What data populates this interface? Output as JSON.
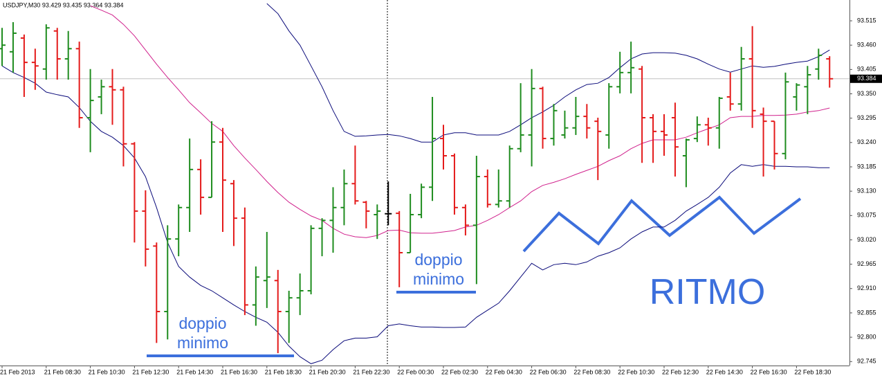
{
  "chart_data": {
    "type": "ohlc",
    "title": "USDJPY,M30  93.429 93.435 93.364 93.384",
    "categories": [
      "21 Feb 2013",
      null,
      null,
      null,
      "21 Feb 08:30",
      null,
      null,
      null,
      "21 Feb 10:30",
      null,
      null,
      null,
      "21 Feb 12:30",
      null,
      null,
      null,
      "21 Feb 14:30",
      null,
      null,
      null,
      "21 Feb 16:30",
      null,
      null,
      null,
      "21 Feb 18:30",
      null,
      null,
      null,
      "21 Feb 20:30",
      null,
      null,
      null,
      "21 Feb 22:30",
      null,
      null,
      null,
      "22 Feb 00:30",
      null,
      null,
      null,
      "22 Feb 02:30",
      null,
      null,
      null,
      "22 Feb 04:30",
      null,
      null,
      null,
      "22 Feb 06:30",
      null,
      null,
      null,
      "22 Feb 08:30",
      null,
      null,
      null,
      "22 Feb 10:30",
      null,
      null,
      null,
      "22 Feb 12:30",
      null,
      null,
      null,
      "22 Feb 14:30",
      null,
      null,
      null,
      "22 Feb 16:30",
      null,
      null,
      null,
      "22 Feb 18:30",
      null,
      null,
      null
    ],
    "open": [
      93.452,
      93.445,
      93.476,
      93.421,
      93.406,
      93.492,
      93.429,
      93.452,
      93.296,
      93.343,
      93.366,
      93.359,
      93.237,
      93.085,
      93.006,
      92.858,
      93.022,
      93.093,
      93.179,
      93.116,
      93.241,
      93.147,
      93.069,
      92.873,
      92.928,
      92.928,
      92.858,
      92.889,
      92.905,
      93.046,
      93.064,
      93.093,
      93.147,
      93.105,
      93.077,
      93.079,
      93.08,
      92.991,
      93.077,
      93.139,
      93.249,
      93.21,
      93.093,
      93.053,
      93.163,
      93.1,
      93.108,
      93.226,
      93.257,
      93.362,
      93.249,
      93.257,
      93.273,
      93.299,
      93.288,
      93.257,
      93.366,
      93.398,
      93.406,
      93.296,
      93.265,
      93.296,
      93.21,
      93.249,
      93.28,
      93.273,
      93.343,
      93.327,
      93.429,
      93.304,
      93.288,
      93.215,
      93.343,
      93.366,
      93.406,
      93.429
    ],
    "high": [
      93.499,
      93.512,
      93.484,
      93.452,
      93.507,
      93.499,
      93.492,
      93.468,
      93.406,
      93.382,
      93.406,
      93.366,
      93.241,
      93.132,
      93.014,
      93.053,
      93.1,
      93.249,
      93.202,
      93.288,
      93.273,
      93.155,
      93.093,
      92.96,
      93.038,
      92.952,
      92.905,
      92.944,
      93.053,
      93.069,
      93.139,
      93.179,
      93.233,
      93.108,
      93.1,
      93.152,
      93.085,
      93.124,
      93.147,
      93.343,
      93.28,
      93.215,
      93.1,
      93.21,
      93.179,
      93.179,
      93.233,
      93.374,
      93.406,
      93.366,
      93.327,
      93.312,
      93.343,
      93.327,
      93.296,
      93.374,
      93.445,
      93.468,
      93.413,
      93.304,
      93.304,
      93.33,
      93.249,
      93.299,
      93.296,
      93.343,
      93.398,
      93.456,
      93.503,
      93.319,
      93.288,
      93.398,
      93.374,
      93.413,
      93.452,
      93.435
    ],
    "low": [
      93.413,
      93.398,
      93.343,
      93.359,
      93.382,
      93.382,
      93.382,
      93.273,
      93.218,
      93.304,
      93.28,
      93.186,
      93.014,
      92.96,
      92.787,
      92.795,
      92.983,
      93.038,
      93.077,
      93.116,
      93.038,
      93.006,
      92.85,
      92.826,
      92.866,
      92.764,
      92.787,
      92.85,
      92.897,
      92.983,
      92.991,
      93.053,
      93.1,
      93.046,
      93.022,
      93.053,
      92.913,
      92.991,
      93.069,
      93.108,
      93.179,
      93.077,
      93.03,
      92.92,
      93.093,
      93.093,
      93.093,
      93.218,
      93.186,
      93.226,
      93.233,
      93.249,
      93.257,
      93.249,
      93.155,
      93.226,
      93.351,
      93.351,
      93.194,
      93.194,
      93.21,
      93.163,
      93.139,
      93.241,
      93.233,
      93.226,
      93.312,
      93.312,
      93.273,
      93.163,
      93.179,
      93.202,
      93.312,
      93.304,
      93.382,
      93.364
    ],
    "close": [
      93.46,
      93.487,
      93.421,
      93.413,
      93.499,
      93.429,
      93.452,
      93.296,
      93.335,
      93.366,
      93.359,
      93.237,
      93.085,
      92.999,
      92.858,
      93.022,
      93.093,
      93.179,
      93.116,
      93.241,
      93.155,
      93.069,
      92.873,
      92.936,
      92.936,
      92.858,
      92.889,
      92.905,
      93.046,
      93.064,
      93.093,
      93.147,
      93.108,
      93.085,
      93.085,
      93.079,
      92.991,
      93.077,
      93.139,
      93.249,
      93.21,
      93.093,
      93.053,
      93.163,
      93.1,
      93.108,
      93.226,
      93.257,
      93.362,
      93.249,
      93.312,
      93.273,
      93.299,
      93.273,
      93.265,
      93.366,
      93.398,
      93.409,
      93.296,
      93.265,
      93.257,
      93.23,
      93.246,
      93.28,
      93.273,
      93.34,
      93.327,
      93.429,
      93.312,
      93.288,
      93.215,
      93.377,
      93.37,
      93.393,
      93.437,
      93.384
    ],
    "up_color": "#1e8c1e",
    "down_color": "#e41a1a",
    "doji_color": "#000000",
    "bands": [
      {
        "color": "#0a0a7a",
        "values": [
          null,
          null,
          null,
          null,
          null,
          null,
          null,
          null,
          null,
          null,
          null,
          null,
          null,
          null,
          null,
          null,
          null,
          null,
          null,
          null,
          null,
          null,
          null,
          null,
          93.554,
          93.531,
          93.492,
          93.46,
          93.413,
          93.366,
          93.312,
          93.265,
          93.254,
          93.255,
          93.257,
          93.258,
          93.255,
          93.249,
          93.241,
          93.241,
          93.257,
          93.262,
          93.262,
          93.257,
          93.257,
          93.257,
          93.265,
          93.28,
          93.296,
          93.309,
          93.324,
          93.343,
          93.359,
          93.371,
          93.374,
          93.387,
          93.409,
          93.429,
          93.44,
          93.443,
          93.443,
          93.442,
          93.437,
          93.429,
          93.417,
          93.406,
          93.399,
          93.406,
          93.413,
          93.41,
          93.412,
          93.417,
          93.421,
          93.424,
          93.434,
          93.449
        ]
      },
      {
        "color": "#d0208c",
        "values": [
          null,
          null,
          null,
          null,
          null,
          null,
          null,
          null,
          93.549,
          93.539,
          93.528,
          93.507,
          93.481,
          93.449,
          93.417,
          93.387,
          93.359,
          93.33,
          93.307,
          93.283,
          93.265,
          93.233,
          93.205,
          93.179,
          93.152,
          93.127,
          93.105,
          93.089,
          93.074,
          93.064,
          93.046,
          93.033,
          93.027,
          93.025,
          93.03,
          93.041,
          93.042,
          93.036,
          93.035,
          93.035,
          93.038,
          93.041,
          93.049,
          93.053,
          93.064,
          93.077,
          93.093,
          93.108,
          93.129,
          93.143,
          93.15,
          93.158,
          93.168,
          93.177,
          93.186,
          93.199,
          93.21,
          93.226,
          93.238,
          93.246,
          93.246,
          93.246,
          93.252,
          93.262,
          93.271,
          93.28,
          93.296,
          93.299,
          93.299,
          93.301,
          93.301,
          93.302,
          93.304,
          93.309,
          93.312,
          93.318
        ]
      },
      {
        "color": "#0a0a7a",
        "values": [
          93.413,
          93.398,
          93.387,
          93.374,
          93.354,
          93.348,
          93.343,
          93.319,
          93.288,
          93.265,
          93.252,
          93.233,
          93.205,
          93.163,
          93.093,
          93.014,
          92.96,
          92.936,
          92.917,
          92.905,
          92.889,
          92.873,
          92.858,
          92.845,
          92.834,
          92.811,
          92.78,
          92.756,
          92.74,
          92.748,
          92.772,
          92.792,
          92.798,
          92.798,
          92.801,
          92.826,
          92.83,
          92.826,
          92.823,
          92.823,
          92.822,
          92.822,
          92.823,
          92.845,
          92.861,
          92.877,
          92.905,
          92.936,
          92.967,
          92.952,
          92.964,
          92.967,
          92.964,
          92.97,
          92.983,
          92.991,
          93.002,
          93.022,
          93.038,
          93.049,
          93.049,
          93.064,
          93.085,
          93.1,
          93.116,
          93.139,
          93.171,
          93.19,
          93.186,
          93.19,
          93.186,
          93.186,
          93.185,
          93.185,
          93.183,
          93.183
        ]
      }
    ],
    "price_line": 93.384,
    "ylim": [
      92.736,
      93.562
    ],
    "yticks": [
      93.515,
      {
        "value": 93.46,
        "label": "93.460"
      },
      93.405,
      {
        "value": 93.35,
        "label": "93.350"
      },
      93.295,
      {
        "value": 93.24,
        "label": "93.240"
      },
      93.185,
      {
        "value": 93.13,
        "label": "93.130"
      },
      93.075,
      {
        "value": 93.02,
        "label": "93.020"
      },
      92.965,
      {
        "value": 92.91,
        "label": "92.910"
      },
      92.855,
      {
        "value": 92.8,
        "label": "92.800"
      },
      92.745
    ],
    "grid": false
  },
  "annotations": [
    "doppio minimo",
    "doppio minimo",
    "RITMO"
  ]
}
